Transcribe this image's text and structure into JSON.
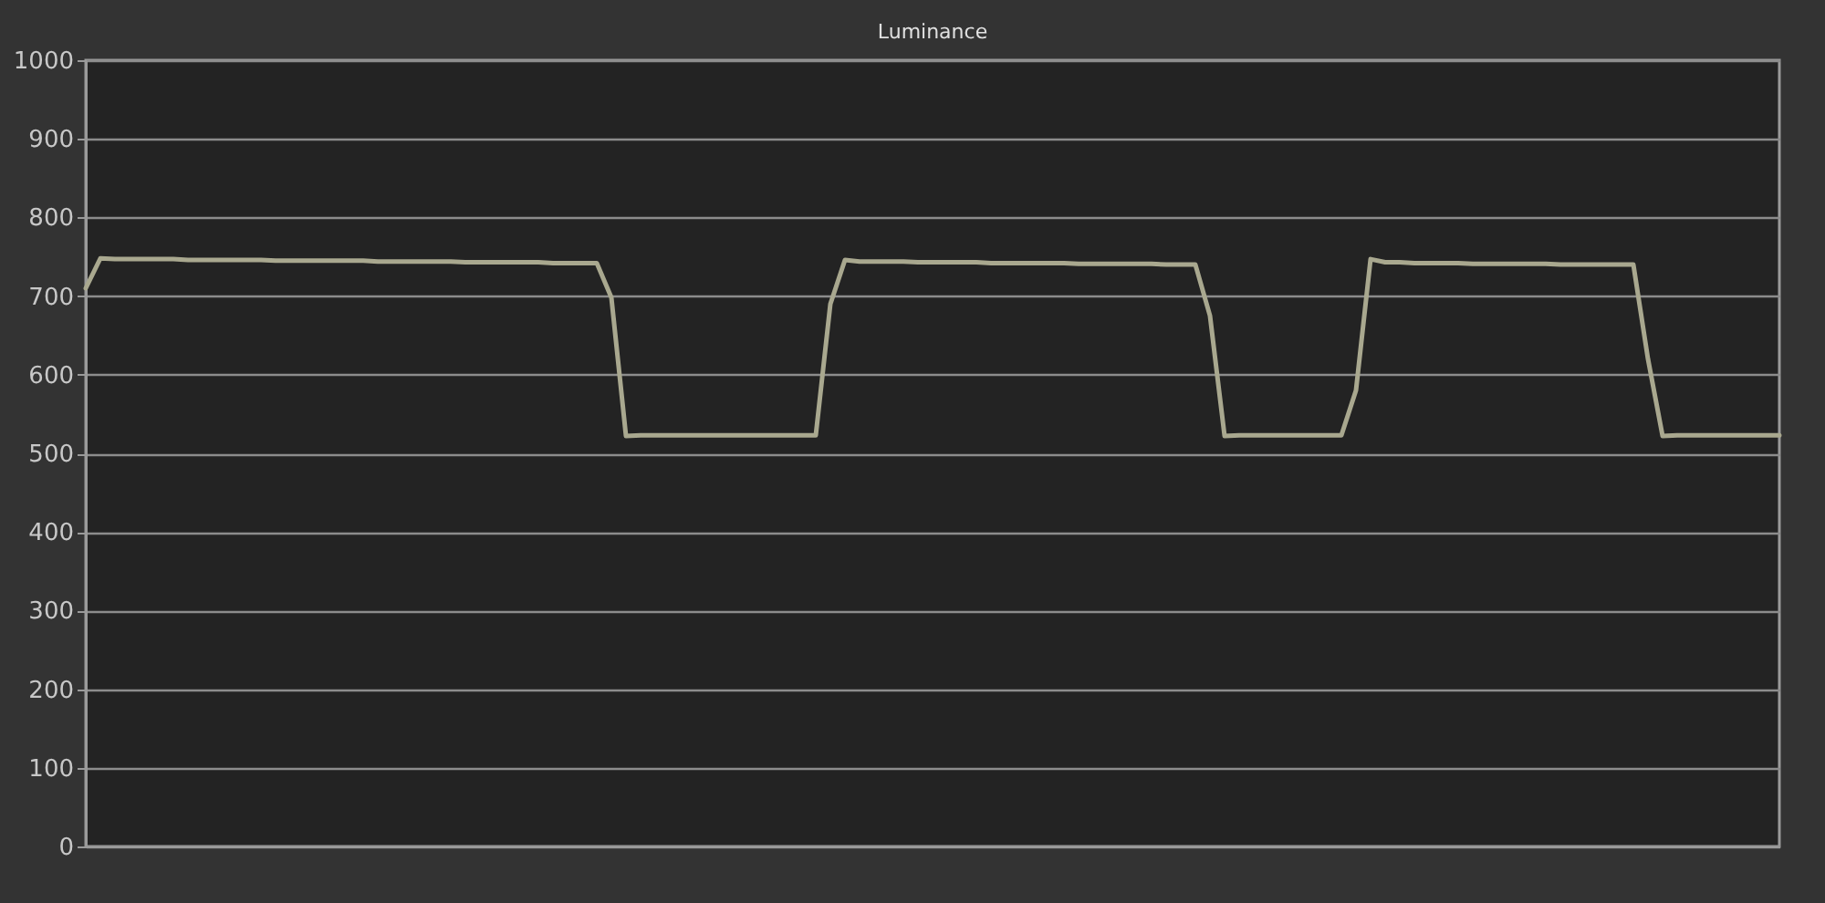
{
  "chart_data": {
    "type": "line",
    "title": "Luminance",
    "categories": [
      null,
      null,
      null,
      null,
      null,
      null,
      null,
      null,
      null,
      null,
      null,
      null,
      null,
      null,
      null,
      null,
      null,
      null,
      null,
      null,
      null,
      null,
      null,
      null,
      null,
      null,
      null,
      null,
      null,
      null,
      null,
      null,
      null,
      null,
      null,
      null,
      null,
      null,
      null,
      null,
      null,
      null,
      null,
      null,
      null,
      null,
      null,
      null,
      null,
      null,
      null,
      null,
      null,
      null,
      null,
      null,
      null,
      null,
      null,
      null,
      null,
      null,
      null,
      null,
      null,
      null,
      null,
      null,
      null,
      null,
      null,
      null,
      null,
      null,
      null,
      null,
      null,
      null,
      null,
      null,
      null,
      null,
      null,
      null,
      null,
      null,
      null,
      null,
      null,
      null,
      null,
      null,
      null,
      null,
      null,
      null,
      null,
      null,
      null,
      null,
      null,
      null,
      null,
      null,
      null,
      null,
      null,
      null,
      null,
      null,
      null,
      null,
      null,
      null,
      null,
      null,
      null
    ],
    "series": [
      {
        "color": "#a9a88f",
        "values": [
          710,
          748,
          747,
          747,
          747,
          747,
          747,
          746,
          746,
          746,
          746,
          746,
          746,
          745,
          745,
          745,
          745,
          745,
          745,
          745,
          744,
          744,
          744,
          744,
          744,
          744,
          743,
          743,
          743,
          743,
          743,
          743,
          742,
          742,
          742,
          742,
          698,
          522,
          523,
          523,
          523,
          523,
          523,
          523,
          523,
          523,
          523,
          523,
          523,
          523,
          523,
          690,
          746,
          744,
          744,
          744,
          744,
          743,
          743,
          743,
          743,
          743,
          742,
          742,
          742,
          742,
          742,
          742,
          741,
          741,
          741,
          741,
          741,
          741,
          740,
          740,
          740,
          675,
          522,
          523,
          523,
          523,
          523,
          523,
          523,
          523,
          523,
          580,
          747,
          743,
          743,
          742,
          742,
          742,
          742,
          741,
          741,
          741,
          741,
          741,
          741,
          740,
          740,
          740,
          740,
          740,
          740,
          620,
          522,
          523,
          523,
          523,
          523,
          523,
          523,
          523,
          523
        ]
      }
    ],
    "ylim": [
      0,
      1000
    ],
    "yticks": [
      0,
      100,
      200,
      300,
      400,
      500,
      600,
      700,
      800,
      900,
      1000
    ],
    "grid": "y",
    "tick_labels": "y"
  }
}
